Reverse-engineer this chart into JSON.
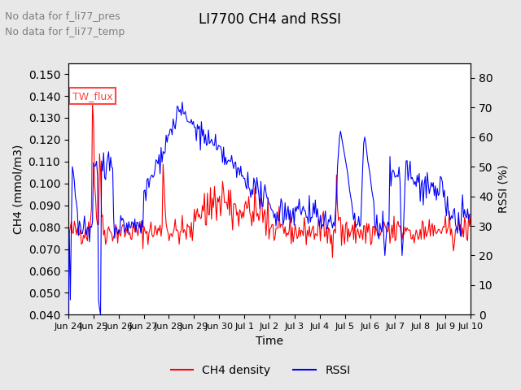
{
  "title": "LI7700 CH4 and RSSI",
  "xlabel": "Time",
  "ylabel_left": "CH4 (mmol/m3)",
  "ylabel_right": "RSSI (%)",
  "ylim_left": [
    0.04,
    0.155
  ],
  "ylim_right": [
    0,
    85
  ],
  "yticks_left": [
    0.04,
    0.05,
    0.06,
    0.07,
    0.08,
    0.09,
    0.1,
    0.11,
    0.12,
    0.13,
    0.14,
    0.15
  ],
  "yticks_right": [
    0,
    10,
    20,
    30,
    40,
    50,
    60,
    70,
    80
  ],
  "annotations": [
    "No data for f_li77_pres",
    "No data for f_li77_temp"
  ],
  "box_label": "TW_flux",
  "box_color": "#FF4444",
  "legend_entries": [
    "CH4 density",
    "RSSI"
  ],
  "legend_colors": [
    "#FF0000",
    "#0000FF"
  ],
  "line_color_ch4": "#FF0000",
  "line_color_rssi": "#0000FF",
  "background_color": "#E8E8E8",
  "plot_background": "#FFFFFF",
  "grid_color": "#FFFFFF",
  "n_points": 400,
  "x_start": 24.0,
  "x_end": 40.0,
  "xtick_positions": [
    24,
    25,
    26,
    27,
    28,
    29,
    30,
    31,
    32,
    33,
    34,
    35,
    36,
    37,
    38,
    39,
    40
  ],
  "xtick_labels": [
    "Jun 24",
    "Jun 25",
    "Jun 26",
    "Jun 27",
    "Jun 28",
    "Jun 29",
    "Jun 30",
    "Jul 1",
    "Jul 2",
    "Jul 3",
    "Jul 4",
    "Jul 5",
    "Jul 6",
    "Jul 7",
    "Jul 8",
    "Jul 9",
    "Jul 10"
  ]
}
